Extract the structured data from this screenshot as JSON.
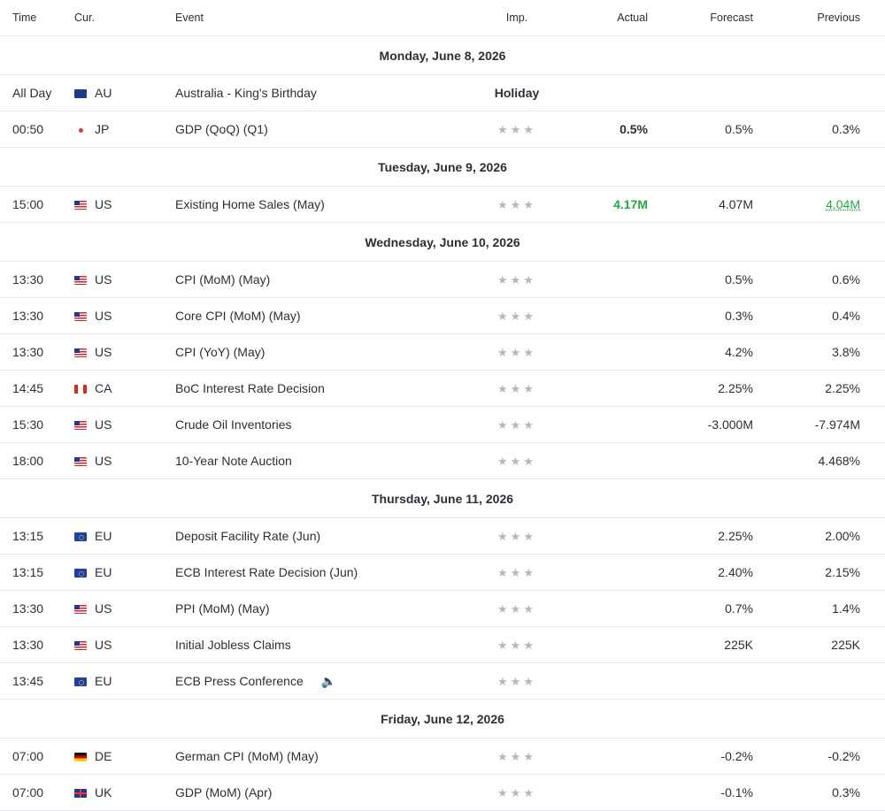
{
  "headers": {
    "time": "Time",
    "currency": "Cur.",
    "event": "Event",
    "importance": "Imp.",
    "actual": "Actual",
    "forecast": "Forecast",
    "previous": "Previous"
  },
  "importance_icon": "three-star-icon",
  "importance_stars": "★★★",
  "speaker_icon": "speaker-icon",
  "speaker_glyph": "🔈",
  "colors": {
    "positive": "#22a845",
    "star": "#b3b8c0",
    "divider": "#e6e8ec"
  },
  "days": [
    {
      "date": "Monday, June 8, 2026",
      "events": [
        {
          "time": "All Day",
          "currency": "AU",
          "flag": "flag-au-icon",
          "event": "Australia - King's Birthday",
          "status": "Holiday",
          "actual": "",
          "forecast": "",
          "previous": ""
        },
        {
          "time": "00:50",
          "currency": "JP",
          "flag": "flag-jp-icon",
          "event": "GDP (QoQ) (Q1)",
          "status": "",
          "actual": "0.5%",
          "forecast": "0.5%",
          "previous": "0.3%"
        }
      ]
    },
    {
      "date": "Tuesday, June 9, 2026",
      "events": [
        {
          "time": "15:00",
          "currency": "US",
          "flag": "flag-us-icon",
          "event": "Existing Home Sales  (May)",
          "status": "",
          "actual": "4.17M",
          "forecast": "4.07M",
          "previous": "4.04M"
        }
      ]
    },
    {
      "date": "Wednesday, June 10, 2026",
      "events": [
        {
          "time": "13:30",
          "currency": "US",
          "flag": "flag-us-icon",
          "event": "CPI (MoM) (May)",
          "status": "",
          "actual": "",
          "forecast": "0.5%",
          "previous": "0.6%"
        },
        {
          "time": "13:30",
          "currency": "US",
          "flag": "flag-us-icon",
          "event": "Core CPI (MoM) (May)",
          "status": "",
          "actual": "",
          "forecast": "0.3%",
          "previous": "0.4%"
        },
        {
          "time": "13:30",
          "currency": "US",
          "flag": "flag-us-icon",
          "event": "CPI (YoY) (May)",
          "status": "",
          "actual": "",
          "forecast": "4.2%",
          "previous": "3.8%"
        },
        {
          "time": "14:45",
          "currency": "CA",
          "flag": "flag-ca-icon",
          "event": "BoC Interest Rate Decision",
          "status": "",
          "actual": "",
          "forecast": "2.25%",
          "previous": "2.25%"
        },
        {
          "time": "15:30",
          "currency": "US",
          "flag": "flag-us-icon",
          "event": "Crude Oil Inventories",
          "status": "",
          "actual": "",
          "forecast": "-3.000M",
          "previous": "-7.974M"
        },
        {
          "time": "18:00",
          "currency": "US",
          "flag": "flag-us-icon",
          "event": "10-Year Note Auction",
          "status": "",
          "actual": "",
          "forecast": "",
          "previous": "4.468%"
        }
      ]
    },
    {
      "date": "Thursday, June 11, 2026",
      "events": [
        {
          "time": "13:15",
          "currency": "EU",
          "flag": "flag-eu-icon",
          "event": "Deposit Facility Rate  (Jun)",
          "status": "",
          "actual": "",
          "forecast": "2.25%",
          "previous": "2.00%"
        },
        {
          "time": "13:15",
          "currency": "EU",
          "flag": "flag-eu-icon",
          "event": "ECB Interest Rate Decision  (Jun)",
          "status": "",
          "actual": "",
          "forecast": "2.40%",
          "previous": "2.15%"
        },
        {
          "time": "13:30",
          "currency": "US",
          "flag": "flag-us-icon",
          "event": "PPI (MoM) (May)",
          "status": "",
          "actual": "",
          "forecast": "0.7%",
          "previous": "1.4%"
        },
        {
          "time": "13:30",
          "currency": "US",
          "flag": "flag-us-icon",
          "event": "Initial Jobless Claims",
          "status": "",
          "actual": "",
          "forecast": "225K",
          "previous": "225K"
        },
        {
          "time": "13:45",
          "currency": "EU",
          "flag": "flag-eu-icon",
          "event": "ECB Press Conference",
          "status": "",
          "actual": "",
          "forecast": "",
          "previous": "",
          "speaker": true
        }
      ]
    },
    {
      "date": "Friday, June 12, 2026",
      "events": [
        {
          "time": "07:00",
          "currency": "DE",
          "flag": "flag-de-icon",
          "event": "German CPI (MoM) (May)",
          "status": "",
          "actual": "",
          "forecast": "-0.2%",
          "previous": "-0.2%"
        },
        {
          "time": "07:00",
          "currency": "UK",
          "flag": "flag-uk-icon",
          "event": "GDP (MoM) (Apr)",
          "status": "",
          "actual": "",
          "forecast": "-0.1%",
          "previous": "0.3%"
        }
      ]
    }
  ]
}
